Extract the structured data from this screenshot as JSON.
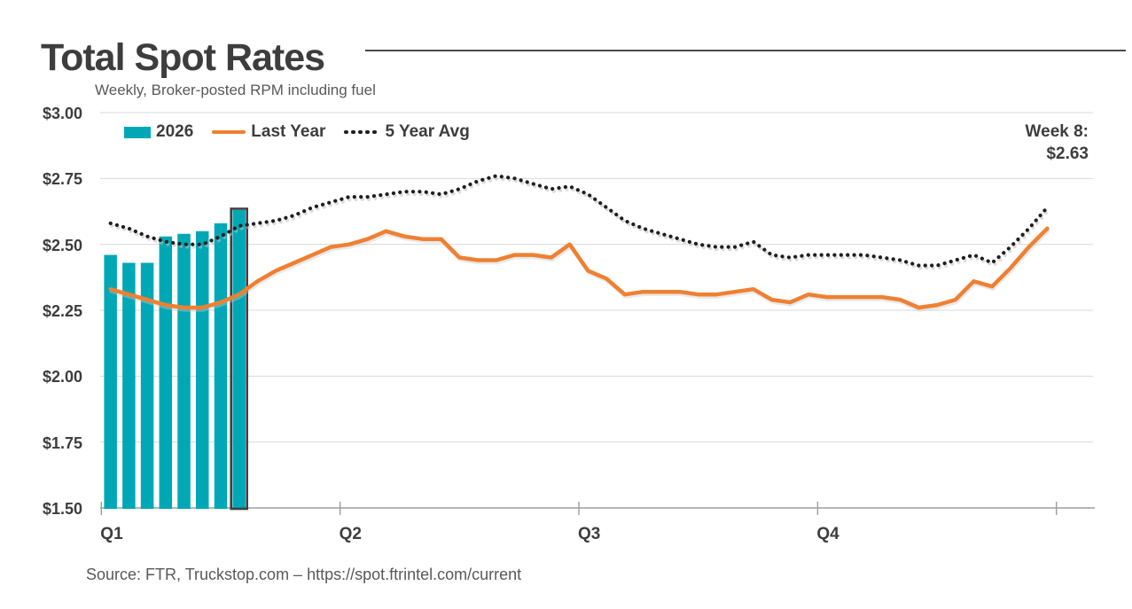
{
  "title": "Total Spot Rates",
  "subtitle": "Weekly, Broker-posted RPM including fuel",
  "legend": {
    "items": [
      {
        "label": "2026",
        "marker": "bar-swatch",
        "color": "#00A8B6"
      },
      {
        "label": "Last Year",
        "marker": "solid-line",
        "color": "#EF8032"
      },
      {
        "label": "5 Year Avg",
        "marker": "dotted-line",
        "color": "#1F1F1F"
      }
    ]
  },
  "annotation": {
    "line1": "Week 8:",
    "line2": "$2.63"
  },
  "source": "Source: FTR, Truckstop.com – https://spot.ftrintel.com/current",
  "colors": {
    "bar_fill": "#00A8B6",
    "last_year_line": "#EF8032",
    "five_year_avg_line": "#1F1F1F",
    "highlight_outline": "#404040",
    "gridline": "#D9D9D9",
    "axis": "#9E9E9E",
    "text_dark": "#3D3D3D",
    "text_muted": "#595959"
  },
  "chart_data": {
    "type": "bar",
    "note": "combo chart: weekly bars for 2026 plus two 52-week comparison lines",
    "x_unit": "week of year (1-52)",
    "categories": [
      "Q1",
      "Q2",
      "Q3",
      "Q4"
    ],
    "quarter_start_weeks": [
      1,
      14,
      27,
      40
    ],
    "y_tick_labels": [
      "$3.00",
      "$2.75",
      "$2.50",
      "$2.25",
      "$2.00",
      "$1.75",
      "$1.50"
    ],
    "y_tick_values": [
      3.0,
      2.75,
      2.5,
      2.25,
      2.0,
      1.75,
      1.5
    ],
    "ylim": [
      1.5,
      3.0
    ],
    "grid": "horizontal only",
    "legend_position": "top-left inside plot",
    "series": [
      {
        "name": "2026",
        "type": "bar",
        "weeks": [
          1,
          2,
          3,
          4,
          5,
          6,
          7,
          8
        ],
        "values": [
          2.46,
          2.43,
          2.43,
          2.53,
          2.54,
          2.55,
          2.58,
          2.63
        ]
      },
      {
        "name": "Last Year",
        "type": "line",
        "values": [
          2.33,
          2.31,
          2.29,
          2.27,
          2.26,
          2.26,
          2.28,
          2.31,
          2.36,
          2.4,
          2.43,
          2.46,
          2.49,
          2.5,
          2.52,
          2.55,
          2.53,
          2.52,
          2.52,
          2.45,
          2.44,
          2.44,
          2.46,
          2.46,
          2.45,
          2.5,
          2.4,
          2.37,
          2.31,
          2.32,
          2.32,
          2.32,
          2.31,
          2.31,
          2.32,
          2.33,
          2.29,
          2.28,
          2.31,
          2.3,
          2.3,
          2.3,
          2.3,
          2.29,
          2.26,
          2.27,
          2.29,
          2.36,
          2.34,
          2.41,
          2.49,
          2.56
        ]
      },
      {
        "name": "5 Year Avg",
        "type": "dotted-line",
        "values": [
          2.58,
          2.56,
          2.53,
          2.51,
          2.5,
          2.5,
          2.53,
          2.57,
          2.58,
          2.59,
          2.61,
          2.64,
          2.66,
          2.68,
          2.68,
          2.69,
          2.7,
          2.7,
          2.69,
          2.71,
          2.74,
          2.76,
          2.75,
          2.73,
          2.71,
          2.72,
          2.69,
          2.64,
          2.59,
          2.56,
          2.54,
          2.52,
          2.5,
          2.49,
          2.49,
          2.51,
          2.46,
          2.45,
          2.46,
          2.46,
          2.46,
          2.46,
          2.45,
          2.44,
          2.42,
          2.42,
          2.44,
          2.46,
          2.43,
          2.49,
          2.56,
          2.64
        ]
      }
    ],
    "highlight": {
      "week": 8,
      "value": 2.63,
      "label": "Week 8: $2.63"
    }
  }
}
